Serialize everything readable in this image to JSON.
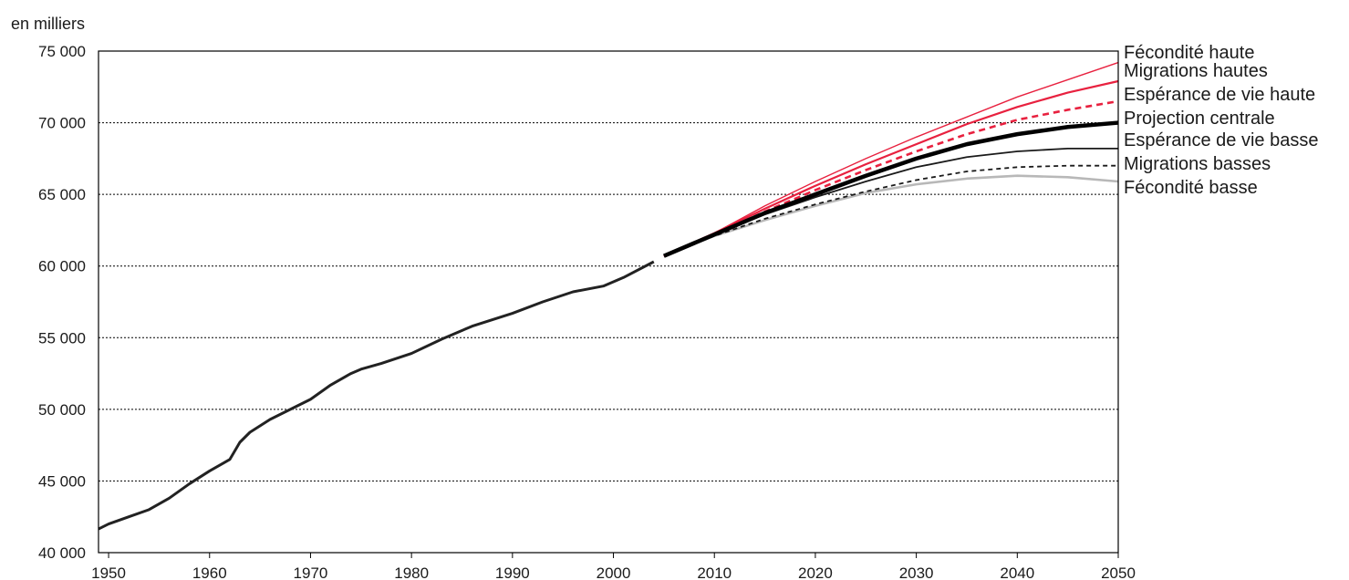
{
  "chart_data": {
    "type": "line",
    "unit_label": "en milliers",
    "xlim": [
      1949,
      2050
    ],
    "ylim": [
      40000,
      75000
    ],
    "x_ticks": [
      "1950",
      "1960",
      "1970",
      "1980",
      "1990",
      "2000",
      "2010",
      "2020",
      "2030",
      "2040",
      "2050"
    ],
    "y_ticks": [
      "40 000",
      "45 000",
      "50 000",
      "55 000",
      "60 000",
      "65 000",
      "70 000",
      "75 000"
    ],
    "grid": "horizontal dotted",
    "legend_placement": "right",
    "historical": {
      "color": "#222222",
      "x": [
        1949,
        1950,
        1952,
        1954,
        1956,
        1958,
        1960,
        1962,
        1963,
        1964,
        1966,
        1968,
        1970,
        1972,
        1974,
        1975,
        1977,
        1980,
        1983,
        1986,
        1990,
        1993,
        1996,
        1999,
        2001,
        2004
      ],
      "y": [
        41650,
        42000,
        42500,
        43000,
        43800,
        44800,
        45700,
        46500,
        47700,
        48400,
        49300,
        50000,
        50700,
        51700,
        52500,
        52800,
        53200,
        53900,
        54900,
        55800,
        56700,
        57500,
        58200,
        58600,
        59200,
        60300
      ]
    },
    "series": [
      {
        "name": "Fécondité haute",
        "color": "#e8213f",
        "width": 1.4,
        "dash": "",
        "x": [
          2005,
          2010,
          2015,
          2020,
          2025,
          2030,
          2035,
          2040,
          2045,
          2050
        ],
        "y": [
          60700,
          62300,
          64200,
          65900,
          67500,
          69000,
          70400,
          71800,
          73000,
          74200
        ]
      },
      {
        "name": "Migrations hautes",
        "color": "#e8213f",
        "width": 2.2,
        "dash": "",
        "x": [
          2005,
          2010,
          2015,
          2020,
          2025,
          2030,
          2035,
          2040,
          2045,
          2050
        ],
        "y": [
          60700,
          62300,
          64000,
          65600,
          67100,
          68500,
          69900,
          71100,
          72100,
          72900
        ]
      },
      {
        "name": "Espérance de vie haute",
        "color": "#e8213f",
        "width": 2.6,
        "dash": "7,5",
        "x": [
          2005,
          2010,
          2015,
          2020,
          2025,
          2030,
          2035,
          2040,
          2045,
          2050
        ],
        "y": [
          60700,
          62200,
          63800,
          65300,
          66700,
          68000,
          69200,
          70200,
          70900,
          71500
        ]
      },
      {
        "name": "Projection centrale",
        "color": "#000000",
        "width": 4.5,
        "dash": "",
        "x": [
          2005,
          2010,
          2015,
          2020,
          2025,
          2030,
          2035,
          2040,
          2045,
          2050
        ],
        "y": [
          60700,
          62200,
          63700,
          65000,
          66300,
          67500,
          68500,
          69200,
          69700,
          70000
        ]
      },
      {
        "name": "Espérance de vie basse",
        "color": "#1a1a1a",
        "width": 1.8,
        "dash": "",
        "x": [
          2005,
          2010,
          2015,
          2020,
          2025,
          2030,
          2035,
          2040,
          2045,
          2050
        ],
        "y": [
          60700,
          62200,
          63600,
          64800,
          65900,
          66900,
          67600,
          68000,
          68200,
          68200
        ]
      },
      {
        "name": "Migrations basses",
        "color": "#1a1a1a",
        "width": 1.8,
        "dash": "5,4",
        "x": [
          2005,
          2010,
          2015,
          2020,
          2025,
          2030,
          2035,
          2040,
          2045,
          2050
        ],
        "y": [
          60700,
          62100,
          63300,
          64300,
          65200,
          66000,
          66600,
          66900,
          67000,
          67000
        ]
      },
      {
        "name": "Fécondité basse",
        "color": "#b8b8b8",
        "width": 2.6,
        "dash": "",
        "x": [
          2005,
          2010,
          2015,
          2020,
          2025,
          2030,
          2035,
          2040,
          2045,
          2050
        ],
        "y": [
          60700,
          62100,
          63200,
          64200,
          65100,
          65700,
          66100,
          66300,
          66200,
          65900
        ]
      }
    ]
  }
}
